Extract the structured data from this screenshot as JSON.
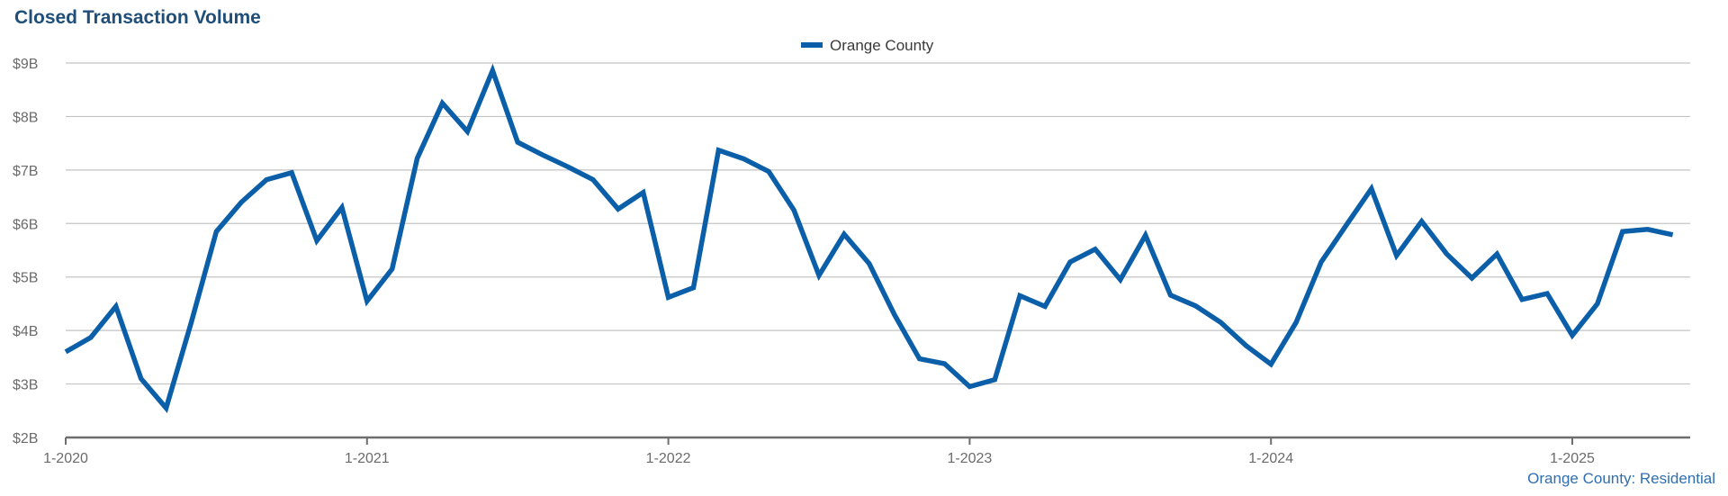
{
  "chart_data": {
    "type": "line",
    "title": "Closed Transaction Volume",
    "ylim": [
      2,
      9
    ],
    "y_ticks": [
      {
        "value": 2,
        "label": "$2B"
      },
      {
        "value": 3,
        "label": "$3B"
      },
      {
        "value": 4,
        "label": "$4B"
      },
      {
        "value": 5,
        "label": "$5B"
      },
      {
        "value": 6,
        "label": "$6B"
      },
      {
        "value": 7,
        "label": "$7B"
      },
      {
        "value": 8,
        "label": "$8B"
      },
      {
        "value": 9,
        "label": "$9B"
      }
    ],
    "x_ticks": [
      {
        "index": 0,
        "label": "1-2020"
      },
      {
        "index": 12,
        "label": "1-2021"
      },
      {
        "index": 24,
        "label": "1-2022"
      },
      {
        "index": 36,
        "label": "1-2023"
      },
      {
        "index": 48,
        "label": "1-2024"
      },
      {
        "index": 60,
        "label": "1-2025"
      }
    ],
    "grid": true,
    "legend_position": "top-center",
    "source_note": "Orange County: Residential",
    "series": [
      {
        "name": "Orange County",
        "color": "#0b5ea8",
        "x": [
          "2020-01",
          "2020-02",
          "2020-03",
          "2020-04",
          "2020-05",
          "2020-06",
          "2020-07",
          "2020-08",
          "2020-09",
          "2020-10",
          "2020-11",
          "2020-12",
          "2021-01",
          "2021-02",
          "2021-03",
          "2021-04",
          "2021-05",
          "2021-06",
          "2021-07",
          "2021-08",
          "2021-09",
          "2021-10",
          "2021-11",
          "2021-12",
          "2022-01",
          "2022-02",
          "2022-03",
          "2022-04",
          "2022-05",
          "2022-06",
          "2022-07",
          "2022-08",
          "2022-09",
          "2022-10",
          "2022-11",
          "2022-12",
          "2023-01",
          "2023-02",
          "2023-03",
          "2023-04",
          "2023-05",
          "2023-06",
          "2023-07",
          "2023-08",
          "2023-09",
          "2023-10",
          "2023-11",
          "2023-12",
          "2024-01",
          "2024-02",
          "2024-03",
          "2024-04",
          "2024-05",
          "2024-06",
          "2024-07",
          "2024-08",
          "2024-09",
          "2024-10",
          "2024-11",
          "2024-12",
          "2025-01",
          "2025-02",
          "2025-03",
          "2025-04",
          "2025-05"
        ],
        "values": [
          3.6,
          3.87,
          4.45,
          3.1,
          2.55,
          4.15,
          5.85,
          6.4,
          6.82,
          6.95,
          5.68,
          6.3,
          4.55,
          5.15,
          7.22,
          8.25,
          7.72,
          8.86,
          7.52,
          7.28,
          7.06,
          6.82,
          6.27,
          6.58,
          4.62,
          4.8,
          7.37,
          7.21,
          6.97,
          6.25,
          5.03,
          5.8,
          5.25,
          4.3,
          3.47,
          3.38,
          2.95,
          3.08,
          4.65,
          4.45,
          5.28,
          5.52,
          4.95,
          5.78,
          4.66,
          4.46,
          4.15,
          3.72,
          3.37,
          4.15,
          5.28,
          5.97,
          6.65,
          5.4,
          6.04,
          5.43,
          4.98,
          5.43,
          4.58,
          4.69,
          3.91,
          4.5,
          5.85,
          5.89,
          5.79
        ]
      }
    ]
  },
  "legend": {
    "label": "Orange County"
  }
}
